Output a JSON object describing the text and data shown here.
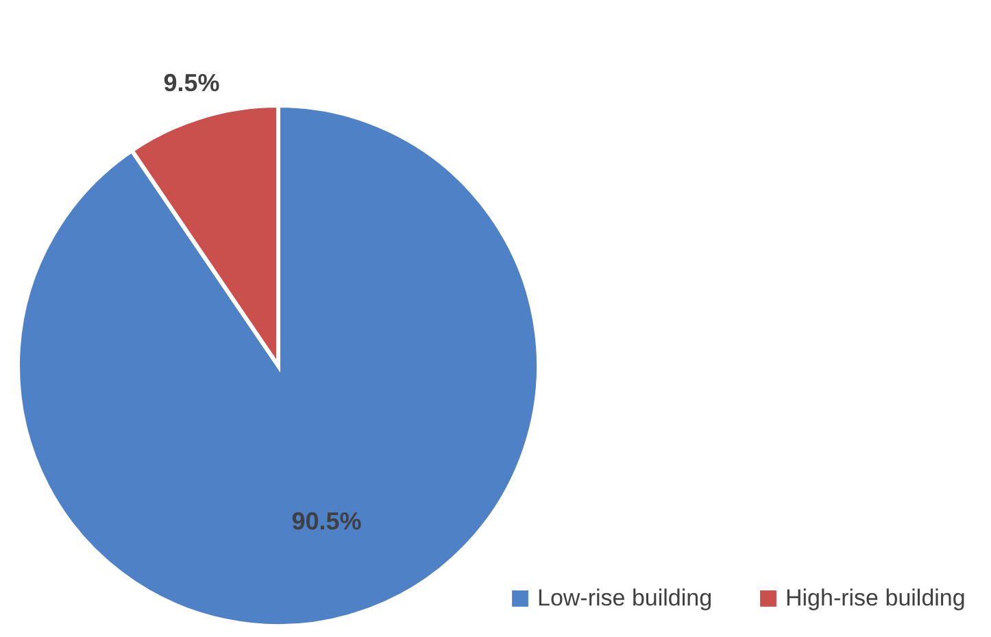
{
  "chart_data": {
    "type": "pie",
    "categories": [
      "Low-rise building",
      "High-rise building"
    ],
    "values": [
      90.5,
      9.5
    ],
    "colors": [
      "#4f81c7",
      "#c9504d"
    ],
    "value_labels": [
      "90.5%",
      "9.5%"
    ],
    "legend": "bottom right"
  }
}
